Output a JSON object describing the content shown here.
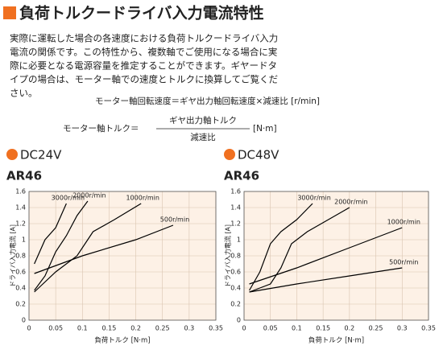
{
  "document": {
    "title": "負荷トルクードライバ入力電流特性",
    "paragraph": [
      "実際に運転した場合の各速度における負荷トルクードライバ入力",
      "電流の関係です。この特性から、複数軸でご使用になる場合に実",
      "際に必要となる電源容量を推定することができます。ギヤードタ",
      "イプの場合は、モーター軸での速度とトルクに換算してご覧くだ",
      "さい。"
    ],
    "formula1": "モーター軸回転速度＝ギヤ出力軸回転速度×減速比 [r/min]",
    "formula2": {
      "left": "モーター軸トルク＝",
      "numerator": "ギヤ出力軸トルク",
      "denominator": "減速比",
      "unit": "[N·m]"
    }
  },
  "chart_data": [
    {
      "type": "line",
      "title": "DC24V",
      "subtitle": "AR46",
      "x_label": "負荷トルク [N·m]",
      "y_label": "ドライバ入力電流 [A]",
      "xlim": [
        0,
        0.35
      ],
      "xticks": [
        0,
        0.05,
        0.1,
        0.15,
        0.2,
        0.25,
        0.3,
        0.35
      ],
      "ylim": [
        0,
        1.6
      ],
      "yticks": [
        0,
        0.2,
        0.4,
        0.6,
        0.8,
        1,
        1.2,
        1.4,
        1.6
      ],
      "grid": true,
      "series": [
        {
          "name": "3000r/min",
          "color": "#000000",
          "x": [
            0.01,
            0.02,
            0.03,
            0.05,
            0.06,
            0.07
          ],
          "values": [
            0.7,
            0.85,
            1.0,
            1.15,
            1.3,
            1.45
          ]
        },
        {
          "name": "2000r/min",
          "color": "#000000",
          "x": [
            0.01,
            0.03,
            0.05,
            0.07,
            0.09,
            0.11
          ],
          "values": [
            0.37,
            0.55,
            0.85,
            1.05,
            1.3,
            1.48
          ]
        },
        {
          "name": "1000r/min",
          "color": "#000000",
          "x": [
            0.01,
            0.05,
            0.09,
            0.12,
            0.16,
            0.21
          ],
          "values": [
            0.35,
            0.6,
            0.8,
            1.1,
            1.25,
            1.45
          ]
        },
        {
          "name": "500r/min",
          "color": "#000000",
          "x": [
            0.01,
            0.1,
            0.2,
            0.27
          ],
          "values": [
            0.58,
            0.8,
            1.0,
            1.18
          ]
        }
      ]
    },
    {
      "type": "line",
      "title": "DC48V",
      "subtitle": "AR46",
      "x_label": "負荷トルク [N·m]",
      "y_label": "ドライバ入力電流 [A]",
      "xlim": [
        0,
        0.35
      ],
      "xticks": [
        0,
        0.05,
        0.1,
        0.15,
        0.2,
        0.25,
        0.3,
        0.35
      ],
      "ylim": [
        0,
        1.6
      ],
      "yticks": [
        0,
        0.2,
        0.4,
        0.6,
        0.8,
        1,
        1.2,
        1.4,
        1.6
      ],
      "grid": true,
      "series": [
        {
          "name": "3000r/min",
          "color": "#000000",
          "x": [
            0.01,
            0.03,
            0.05,
            0.07,
            0.1,
            0.13
          ],
          "values": [
            0.37,
            0.6,
            0.95,
            1.1,
            1.25,
            1.45
          ]
        },
        {
          "name": "2000r/min",
          "color": "#000000",
          "x": [
            0.01,
            0.05,
            0.07,
            0.09,
            0.12,
            0.16,
            0.2
          ],
          "values": [
            0.35,
            0.45,
            0.65,
            0.95,
            1.1,
            1.25,
            1.4
          ]
        },
        {
          "name": "1000r/min",
          "color": "#000000",
          "x": [
            0.01,
            0.1,
            0.2,
            0.3
          ],
          "values": [
            0.45,
            0.65,
            0.9,
            1.15
          ]
        },
        {
          "name": "500r/min",
          "color": "#000000",
          "x": [
            0.01,
            0.1,
            0.2,
            0.3
          ],
          "values": [
            0.35,
            0.45,
            0.55,
            0.65
          ]
        }
      ]
    }
  ]
}
